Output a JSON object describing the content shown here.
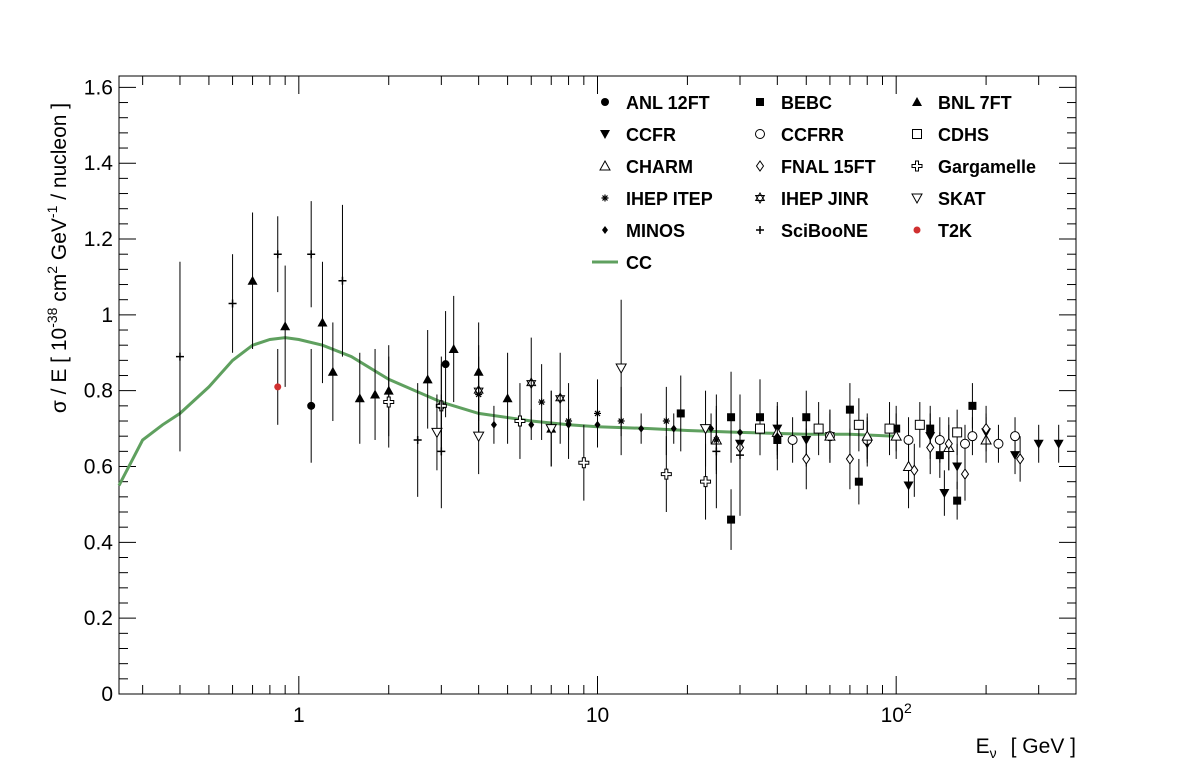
{
  "chart_data": {
    "type": "scatter",
    "title": "",
    "xlabel_main": "E",
    "xlabel_sub": "ν",
    "xlabel_unit": "[ GeV ]",
    "ylabel_parts": {
      "a": "σ / E  [ 10",
      "b": "-38",
      "c": " cm",
      "d": "2",
      "e": " GeV",
      "f": "-1",
      "g": " / nucleon ]"
    },
    "x_scale": "log",
    "xlim": [
      0.25,
      400
    ],
    "ylim": [
      0,
      1.63
    ],
    "y_ticks": [
      "0",
      "0.2",
      "0.4",
      "0.6",
      "0.8",
      "1",
      "1.2",
      "1.4",
      "1.6"
    ],
    "x_ticks": [
      {
        "value": 1,
        "base": "1",
        "exp": ""
      },
      {
        "value": 10,
        "base": "10",
        "exp": ""
      },
      {
        "value": 100,
        "base": "10",
        "exp": "2"
      }
    ],
    "grid": false,
    "legend_position": "top-right",
    "colors": {
      "cc": "#5fa05f",
      "t2k": "#d03030",
      "black": "#000000"
    },
    "series": [
      {
        "name": "ANL 12FT",
        "marker": "circle-filled",
        "points": [
          [
            1.1,
            0.76,
            0.15
          ],
          [
            3.0,
            0.76,
            0.13
          ],
          [
            3.1,
            0.87,
            0.14
          ]
        ]
      },
      {
        "name": "BEBC",
        "marker": "square-filled",
        "points": [
          [
            19,
            0.74,
            0.1
          ],
          [
            28,
            0.73,
            0.12
          ],
          [
            28,
            0.46,
            0.08
          ],
          [
            35,
            0.73,
            0.1
          ],
          [
            40,
            0.67,
            0.08
          ],
          [
            50,
            0.73,
            0.07
          ],
          [
            70,
            0.75,
            0.07
          ],
          [
            75,
            0.56,
            0.06
          ],
          [
            100,
            0.7,
            0.06
          ],
          [
            130,
            0.7,
            0.06
          ],
          [
            160,
            0.51,
            0.05
          ],
          [
            180,
            0.76,
            0.06
          ],
          [
            140,
            0.63,
            0.06
          ]
        ]
      },
      {
        "name": "BNL 7FT",
        "marker": "triangle-up-filled",
        "points": [
          [
            0.7,
            1.09,
            0.18
          ],
          [
            0.9,
            0.97,
            0.16
          ],
          [
            1.2,
            0.98,
            0.16
          ],
          [
            1.3,
            0.85,
            0.13
          ],
          [
            1.6,
            0.78,
            0.12
          ],
          [
            1.8,
            0.79,
            0.12
          ],
          [
            2.0,
            0.8,
            0.12
          ],
          [
            2.7,
            0.83,
            0.13
          ],
          [
            3.3,
            0.91,
            0.14
          ],
          [
            4.0,
            0.85,
            0.13
          ],
          [
            5.0,
            0.78,
            0.12
          ],
          [
            7.0,
            0.7,
            0.1
          ]
        ]
      },
      {
        "name": "CCFR",
        "marker": "triangle-down-filled",
        "points": [
          [
            30,
            0.66,
            0.08
          ],
          [
            40,
            0.7,
            0.07
          ],
          [
            50,
            0.67,
            0.07
          ],
          [
            60,
            0.68,
            0.07
          ],
          [
            80,
            0.66,
            0.06
          ],
          [
            110,
            0.55,
            0.06
          ],
          [
            130,
            0.68,
            0.06
          ],
          [
            145,
            0.53,
            0.06
          ],
          [
            160,
            0.6,
            0.06
          ],
          [
            200,
            0.69,
            0.05
          ],
          [
            250,
            0.63,
            0.05
          ],
          [
            300,
            0.66,
            0.05
          ],
          [
            350,
            0.66,
            0.05
          ]
        ]
      },
      {
        "name": "CCFRR",
        "marker": "circle-open",
        "points": [
          [
            45,
            0.67,
            0.06
          ],
          [
            60,
            0.68,
            0.06
          ],
          [
            80,
            0.67,
            0.06
          ],
          [
            110,
            0.67,
            0.06
          ],
          [
            140,
            0.67,
            0.06
          ],
          [
            180,
            0.68,
            0.05
          ],
          [
            220,
            0.66,
            0.05
          ],
          [
            250,
            0.68,
            0.05
          ],
          [
            170,
            0.66,
            0.05
          ]
        ]
      },
      {
        "name": "CDHS",
        "marker": "square-open",
        "points": [
          [
            35,
            0.7,
            0.07
          ],
          [
            55,
            0.7,
            0.07
          ],
          [
            75,
            0.71,
            0.07
          ],
          [
            95,
            0.7,
            0.07
          ],
          [
            120,
            0.71,
            0.06
          ],
          [
            160,
            0.69,
            0.06
          ]
        ]
      },
      {
        "name": "CHARM",
        "marker": "triangle-up-open",
        "points": [
          [
            25,
            0.67,
            0.08
          ],
          [
            40,
            0.69,
            0.07
          ],
          [
            60,
            0.68,
            0.07
          ],
          [
            80,
            0.68,
            0.06
          ],
          [
            100,
            0.68,
            0.06
          ],
          [
            110,
            0.6,
            0.06
          ],
          [
            150,
            0.65,
            0.06
          ],
          [
            200,
            0.67,
            0.06
          ]
        ]
      },
      {
        "name": "FNAL 15FT",
        "marker": "diamond-open",
        "points": [
          [
            30,
            0.65,
            0.1
          ],
          [
            50,
            0.62,
            0.08
          ],
          [
            70,
            0.62,
            0.08
          ],
          [
            115,
            0.59,
            0.07
          ],
          [
            130,
            0.65,
            0.07
          ],
          [
            150,
            0.66,
            0.07
          ],
          [
            170,
            0.58,
            0.07
          ],
          [
            200,
            0.7,
            0.06
          ],
          [
            260,
            0.62,
            0.06
          ]
        ]
      },
      {
        "name": "Gargamelle",
        "marker": "cross-open",
        "points": [
          [
            2.0,
            0.77,
            0.12
          ],
          [
            3.0,
            0.76,
            0.11
          ],
          [
            5.5,
            0.72,
            0.1
          ],
          [
            9,
            0.61,
            0.1
          ],
          [
            17,
            0.58,
            0.1
          ],
          [
            23,
            0.56,
            0.1
          ]
        ]
      },
      {
        "name": "IHEP ITEP",
        "marker": "asterisk",
        "points": [
          [
            4.0,
            0.79,
            0.1
          ],
          [
            6.5,
            0.77,
            0.1
          ],
          [
            8.0,
            0.72,
            0.1
          ],
          [
            10,
            0.74,
            0.09
          ],
          [
            12,
            0.72,
            0.09
          ],
          [
            17,
            0.72,
            0.09
          ],
          [
            25,
            0.67,
            0.09
          ]
        ]
      },
      {
        "name": "IHEP JINR",
        "marker": "star-open",
        "points": [
          [
            4.0,
            0.8,
            0.12
          ],
          [
            6.0,
            0.82,
            0.12
          ],
          [
            7.5,
            0.78,
            0.12
          ]
        ]
      },
      {
        "name": "SKAT",
        "marker": "triangle-down-open",
        "points": [
          [
            2.9,
            0.69,
            0.1
          ],
          [
            4.0,
            0.68,
            0.1
          ],
          [
            7.0,
            0.7,
            0.1
          ],
          [
            12,
            0.86,
            0.18
          ],
          [
            23,
            0.7,
            0.1
          ]
        ]
      },
      {
        "name": "MINOS",
        "marker": "diamond-filled",
        "points": [
          [
            4.5,
            0.71,
            0.05
          ],
          [
            6,
            0.71,
            0.04
          ],
          [
            8,
            0.71,
            0.04
          ],
          [
            10,
            0.71,
            0.04
          ],
          [
            14,
            0.7,
            0.04
          ],
          [
            18,
            0.7,
            0.04
          ],
          [
            24,
            0.7,
            0.04
          ],
          [
            30,
            0.69,
            0.04
          ],
          [
            40,
            0.68,
            0.04
          ]
        ]
      },
      {
        "name": "SciBooNE",
        "marker": "plus",
        "points": [
          [
            0.4,
            0.89,
            0.25
          ],
          [
            0.6,
            1.03,
            0.13
          ],
          [
            0.85,
            1.16,
            0.1
          ],
          [
            1.1,
            1.16,
            0.14
          ],
          [
            1.4,
            1.09,
            0.2
          ],
          [
            2.5,
            0.67,
            0.15
          ],
          [
            3.0,
            0.64,
            0.15
          ],
          [
            25,
            0.64,
            0.15
          ],
          [
            30,
            0.63,
            0.16
          ]
        ]
      },
      {
        "name": "T2K",
        "marker": "circle-red",
        "points": [
          [
            0.85,
            0.81,
            0.1
          ]
        ]
      }
    ],
    "cc_curve": {
      "name": "CC",
      "x": [
        0.25,
        0.3,
        0.35,
        0.4,
        0.5,
        0.6,
        0.7,
        0.8,
        0.9,
        1.0,
        1.2,
        1.5,
        2.0,
        3.0,
        4.0,
        6.0,
        8.0,
        10,
        15,
        20,
        30,
        50,
        70,
        100
      ],
      "y": [
        0.55,
        0.67,
        0.71,
        0.74,
        0.81,
        0.88,
        0.92,
        0.935,
        0.94,
        0.935,
        0.92,
        0.89,
        0.83,
        0.77,
        0.74,
        0.72,
        0.71,
        0.705,
        0.7,
        0.695,
        0.69,
        0.685,
        0.685,
        0.68
      ]
    }
  }
}
